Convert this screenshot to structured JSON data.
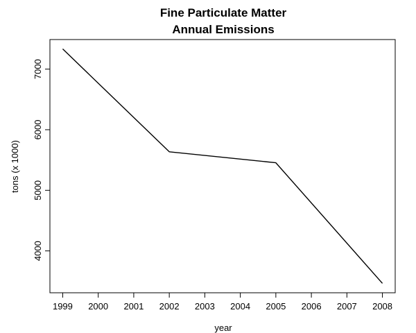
{
  "chart_data": {
    "type": "line",
    "title": [
      "Fine Particulate Matter",
      "Annual Emissions"
    ],
    "xlabel": "year",
    "ylabel": "tons (x 1000)",
    "x": [
      1999,
      2002,
      2005,
      2008
    ],
    "series": [
      {
        "values": [
          7332.967,
          5635.78,
          5454.703,
          3464.206
        ],
        "color": "#000000"
      }
    ],
    "xticks": [
      1999,
      2000,
      2001,
      2002,
      2003,
      2004,
      2005,
      2006,
      2007,
      2008
    ],
    "yticks": [
      4000,
      5000,
      6000,
      7000
    ],
    "xlim": [
      1998.64,
      2008.36
    ],
    "ylim": [
      3309.1,
      7488.1
    ],
    "grid": false,
    "legend": "none"
  }
}
